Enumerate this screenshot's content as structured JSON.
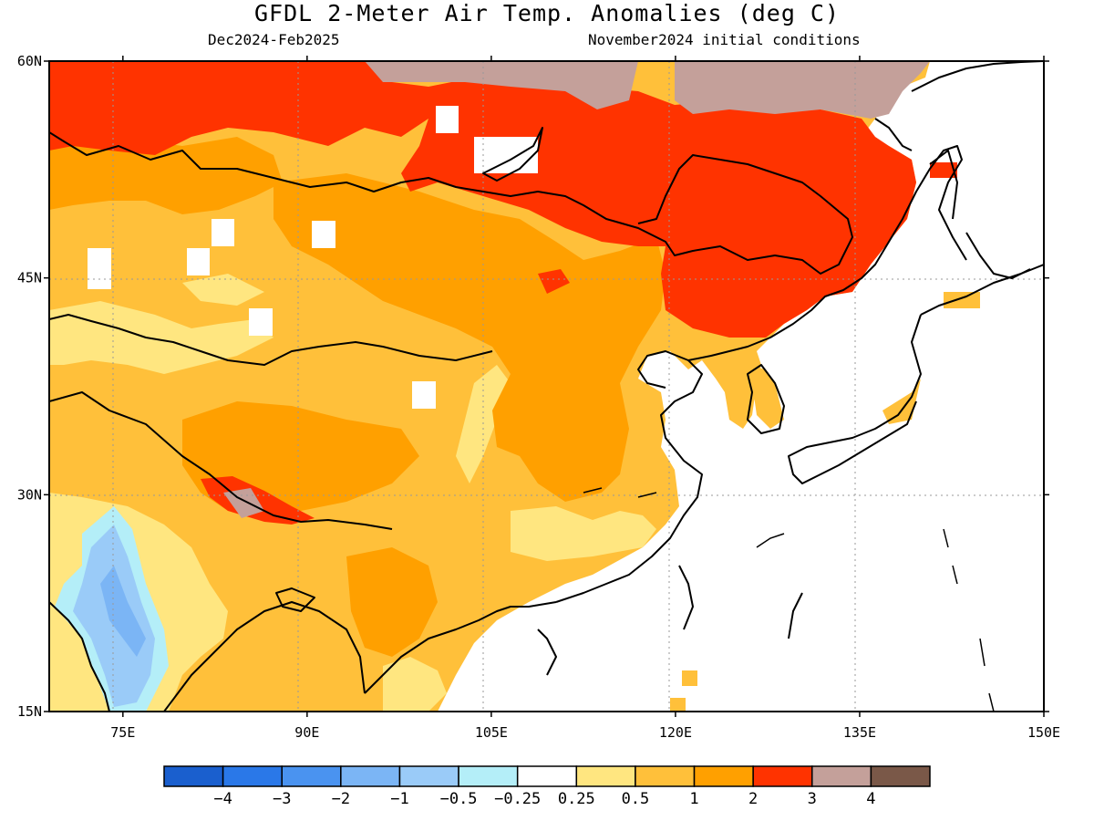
{
  "title": "GFDL 2-Meter Air Temp. Anomalies (deg C)",
  "subtitle_left": "Dec2024-Feb2025",
  "subtitle_right": "November2024 initial conditions",
  "map": {
    "region": "East Asia",
    "lon_range": [
      69,
      150
    ],
    "lat_range": [
      15,
      60
    ],
    "lat_ticks": [
      {
        "value": 60,
        "label": "60N"
      },
      {
        "value": 45,
        "label": "45N"
      },
      {
        "value": 30,
        "label": "30N"
      },
      {
        "value": 15,
        "label": "15N"
      }
    ],
    "lon_ticks": [
      {
        "value": 75,
        "label": "75E"
      },
      {
        "value": 90,
        "label": "90E"
      },
      {
        "value": 105,
        "label": "105E"
      },
      {
        "value": 120,
        "label": "120E"
      },
      {
        "value": 135,
        "label": "135E"
      },
      {
        "value": 150,
        "label": "150E"
      }
    ]
  },
  "colorbar": {
    "colors": [
      "#1a5fce",
      "#2a78e8",
      "#4a93f0",
      "#7bb5f5",
      "#9acbf8",
      "#b4eef8",
      "#ffffff",
      "#ffe680",
      "#ffc03a",
      "#ffa000",
      "#ff3300",
      "#c4a09a",
      "#7a5848"
    ],
    "labels": [
      "-4",
      "-3",
      "-2",
      "-1",
      "-0.5",
      "-0.25",
      "0.25",
      "0.5",
      "1",
      "2",
      "3",
      "4"
    ]
  },
  "palette": {
    "land_base": "#ffc03a",
    "warm_1": "#ffe680",
    "warm_2": "#ffa000",
    "warm_3": "#ff3300",
    "warm_4": "#c4a09a",
    "cool_1": "#b4eef8",
    "cool_2": "#9acbf8",
    "cool_3": "#7bb5f5",
    "ocean": "#ffffff",
    "coast": "#000000"
  }
}
